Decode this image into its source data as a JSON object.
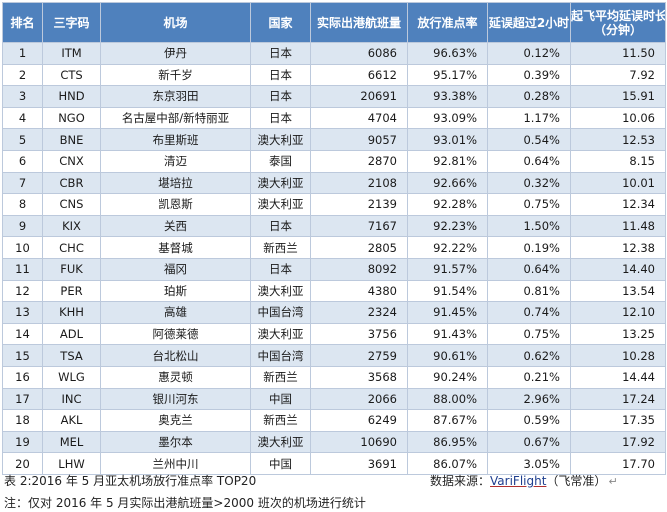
{
  "table": {
    "headers": {
      "rank": "排名",
      "code": "三字码",
      "airport": "机场",
      "country": "国家",
      "flights": "实际出港航班量",
      "ontime": "放行准点率",
      "delay2h": "延误超过2小时",
      "avg_delay_l1": "起飞平均延误时长",
      "avg_delay_l2": "（分钟）"
    },
    "rows": [
      {
        "rank": "1",
        "code": "ITM",
        "airport": "伊丹",
        "country": "日本",
        "flights": "6086",
        "ontime": "96.63%",
        "delay2h": "0.12%",
        "avg": "11.50"
      },
      {
        "rank": "2",
        "code": "CTS",
        "airport": "新千岁",
        "country": "日本",
        "flights": "6612",
        "ontime": "95.17%",
        "delay2h": "0.39%",
        "avg": "7.92"
      },
      {
        "rank": "3",
        "code": "HND",
        "airport": "东京羽田",
        "country": "日本",
        "flights": "20691",
        "ontime": "93.38%",
        "delay2h": "0.28%",
        "avg": "15.91"
      },
      {
        "rank": "4",
        "code": "NGO",
        "airport": "名古屋中部/新特丽亚",
        "country": "日本",
        "flights": "4704",
        "ontime": "93.09%",
        "delay2h": "1.17%",
        "avg": "10.06"
      },
      {
        "rank": "5",
        "code": "BNE",
        "airport": "布里斯班",
        "country": "澳大利亚",
        "flights": "9057",
        "ontime": "93.01%",
        "delay2h": "0.54%",
        "avg": "12.53"
      },
      {
        "rank": "6",
        "code": "CNX",
        "airport": "清迈",
        "country": "泰国",
        "flights": "2870",
        "ontime": "92.81%",
        "delay2h": "0.64%",
        "avg": "8.15"
      },
      {
        "rank": "7",
        "code": "CBR",
        "airport": "堪培拉",
        "country": "澳大利亚",
        "flights": "2108",
        "ontime": "92.66%",
        "delay2h": "0.32%",
        "avg": "10.01"
      },
      {
        "rank": "8",
        "code": "CNS",
        "airport": "凯恩斯",
        "country": "澳大利亚",
        "flights": "2139",
        "ontime": "92.28%",
        "delay2h": "0.75%",
        "avg": "12.34"
      },
      {
        "rank": "9",
        "code": "KIX",
        "airport": "关西",
        "country": "日本",
        "flights": "7167",
        "ontime": "92.23%",
        "delay2h": "1.50%",
        "avg": "11.48"
      },
      {
        "rank": "10",
        "code": "CHC",
        "airport": "基督城",
        "country": "新西兰",
        "flights": "2805",
        "ontime": "92.22%",
        "delay2h": "0.19%",
        "avg": "12.38"
      },
      {
        "rank": "11",
        "code": "FUK",
        "airport": "福冈",
        "country": "日本",
        "flights": "8092",
        "ontime": "91.57%",
        "delay2h": "0.64%",
        "avg": "14.40"
      },
      {
        "rank": "12",
        "code": "PER",
        "airport": "珀斯",
        "country": "澳大利亚",
        "flights": "4380",
        "ontime": "91.54%",
        "delay2h": "0.81%",
        "avg": "13.54"
      },
      {
        "rank": "13",
        "code": "KHH",
        "airport": "高雄",
        "country": "中国台湾",
        "flights": "2324",
        "ontime": "91.45%",
        "delay2h": "0.74%",
        "avg": "12.10"
      },
      {
        "rank": "14",
        "code": "ADL",
        "airport": "阿德莱德",
        "country": "澳大利亚",
        "flights": "3756",
        "ontime": "91.43%",
        "delay2h": "0.75%",
        "avg": "13.25"
      },
      {
        "rank": "15",
        "code": "TSA",
        "airport": "台北松山",
        "country": "中国台湾",
        "flights": "2759",
        "ontime": "90.61%",
        "delay2h": "0.62%",
        "avg": "10.28"
      },
      {
        "rank": "16",
        "code": "WLG",
        "airport": "惠灵顿",
        "country": "新西兰",
        "flights": "3568",
        "ontime": "90.24%",
        "delay2h": "0.21%",
        "avg": "14.44"
      },
      {
        "rank": "17",
        "code": "INC",
        "airport": "银川河东",
        "country": "中国",
        "flights": "2066",
        "ontime": "88.00%",
        "delay2h": "2.96%",
        "avg": "17.24"
      },
      {
        "rank": "18",
        "code": "AKL",
        "airport": "奥克兰",
        "country": "新西兰",
        "flights": "6249",
        "ontime": "87.67%",
        "delay2h": "0.59%",
        "avg": "17.35"
      },
      {
        "rank": "19",
        "code": "MEL",
        "airport": "墨尔本",
        "country": "澳大利亚",
        "flights": "10690",
        "ontime": "86.95%",
        "delay2h": "0.67%",
        "avg": "17.92"
      },
      {
        "rank": "20",
        "code": "LHW",
        "airport": "兰州中川",
        "country": "中国",
        "flights": "3691",
        "ontime": "86.07%",
        "delay2h": "3.05%",
        "avg": "17.70"
      }
    ]
  },
  "captions": {
    "table_caption": "表 2:2016 年 5 月亚太机场放行准点率 TOP20",
    "source_prefix": "数据来源：",
    "source_brand": "VariFlight",
    "source_suffix": "（飞常准）",
    "note": "注：仅对 2016 年 5 月实际出港航班量>2000 班次的机场进行统计"
  },
  "colors": {
    "header_bg": "#4f81bd",
    "row_band": "#dce6f1",
    "grid_line": "#bcc9dc"
  }
}
